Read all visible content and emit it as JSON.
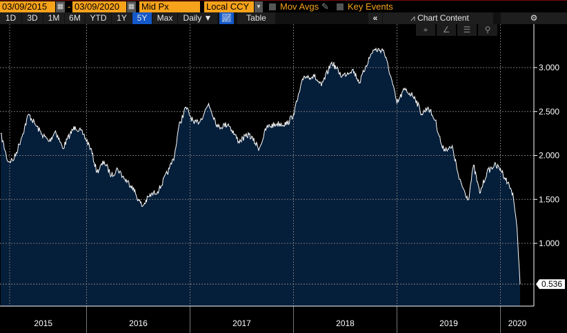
{
  "toolbar": {
    "start_date": "03/09/2015",
    "date_separator": "-",
    "end_date": "03/09/2020",
    "field": "Mid Px",
    "currency": "Local CCY",
    "mov_avgs": "Mov Avgs",
    "key_events": "Key Events",
    "ranges": [
      "1D",
      "3D",
      "1M",
      "6M",
      "YTD",
      "1Y",
      "5Y",
      "Max"
    ],
    "active_range": "5Y",
    "frequency": "Daily ▼",
    "table": "Table",
    "collapse": "«",
    "chart_content": "Chart Content",
    "settings": "⚙",
    "tools": [
      "⌖",
      "∠",
      "☰",
      "⚲"
    ]
  },
  "colors": {
    "fill": "#051e3a",
    "line": "#ffffff",
    "accent": "#f7a21b",
    "active": "#1459c9"
  },
  "chart_data": {
    "type": "area",
    "title": "",
    "xlabel": "",
    "ylabel": "",
    "x_tick_labels": [
      "2015",
      "2016",
      "2017",
      "2018",
      "2019",
      "2020"
    ],
    "y_tick_labels": [
      "1.000",
      "1.500",
      "2.000",
      "2.500",
      "3.000"
    ],
    "y_ticks": [
      1.0,
      1.5,
      2.0,
      2.5,
      3.0
    ],
    "ylim": [
      0.28,
      3.5
    ],
    "xlim": [
      2015.17,
      2020.33
    ],
    "last_value_label": "0.536",
    "last_value": 0.536,
    "grid": true,
    "series": [
      {
        "name": "Mid Px",
        "x": [
          2015.17,
          2015.24,
          2015.3,
          2015.37,
          2015.44,
          2015.5,
          2015.57,
          2015.64,
          2015.7,
          2015.77,
          2015.84,
          2015.89,
          2015.97,
          2016.04,
          2016.1,
          2016.17,
          2016.24,
          2016.3,
          2016.37,
          2016.44,
          2016.5,
          2016.54,
          2016.6,
          2016.7,
          2016.8,
          2016.85,
          2016.89,
          2016.96,
          2017.04,
          2017.1,
          2017.18,
          2017.27,
          2017.37,
          2017.47,
          2017.57,
          2017.67,
          2017.74,
          2017.84,
          2017.94,
          2018.0,
          2018.1,
          2018.2,
          2018.27,
          2018.37,
          2018.47,
          2018.57,
          2018.64,
          2018.7,
          2018.77,
          2018.87,
          2018.94,
          2019.0,
          2019.07,
          2019.17,
          2019.24,
          2019.3,
          2019.37,
          2019.44,
          2019.54,
          2019.6,
          2019.69,
          2019.74,
          2019.8,
          2019.87,
          2019.94,
          2020.0,
          2020.07,
          2020.12,
          2020.16,
          2020.19
        ],
        "y": [
          2.25,
          1.93,
          1.96,
          2.2,
          2.47,
          2.36,
          2.24,
          2.16,
          2.28,
          2.08,
          2.24,
          2.33,
          2.24,
          2.08,
          1.81,
          1.93,
          1.77,
          1.85,
          1.73,
          1.65,
          1.5,
          1.42,
          1.53,
          1.61,
          1.85,
          2.0,
          2.32,
          2.55,
          2.36,
          2.4,
          2.59,
          2.32,
          2.36,
          2.16,
          2.24,
          2.08,
          2.32,
          2.36,
          2.36,
          2.47,
          2.9,
          2.9,
          2.79,
          3.06,
          2.9,
          2.98,
          2.83,
          3.02,
          3.2,
          3.2,
          2.9,
          2.59,
          2.75,
          2.67,
          2.47,
          2.55,
          2.4,
          2.08,
          2.08,
          1.73,
          1.5,
          1.89,
          1.57,
          1.81,
          1.89,
          1.85,
          1.69,
          1.57,
          1.18,
          0.536
        ]
      }
    ]
  }
}
